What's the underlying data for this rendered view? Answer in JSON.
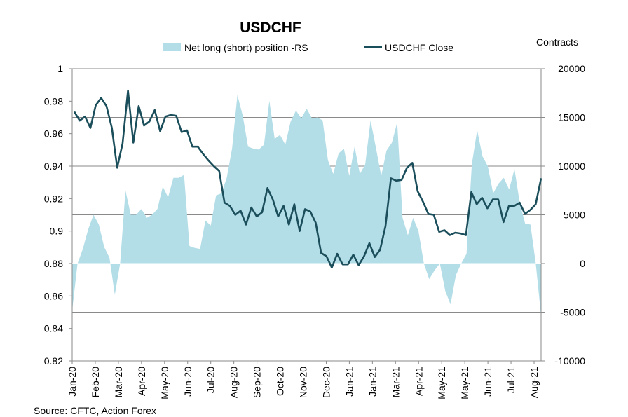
{
  "chart_data": {
    "type": "area+line",
    "title": "USDCHF",
    "source": "Source: CFTC, Action Forex",
    "right_axis_title": "Contracts",
    "legend": [
      {
        "name": "Net long (short) position -RS",
        "kind": "area",
        "color": "#b3dde7"
      },
      {
        "name": "USDCHF Close",
        "kind": "line",
        "color": "#1b4e5b"
      }
    ],
    "y_left": {
      "min": 0.82,
      "max": 1.0,
      "step": 0.02,
      "ticks": [
        "0.82",
        "0.84",
        "0.86",
        "0.88",
        "0.9",
        "0.92",
        "0.94",
        "0.96",
        "0.98",
        "1"
      ]
    },
    "y_right": {
      "min": -10000,
      "max": 20000,
      "step": 5000,
      "ticks": [
        "-10000",
        "-5000",
        "0",
        "5000",
        "10000",
        "15000",
        "20000"
      ]
    },
    "x_labels": [
      "Jan-20",
      "Feb-20",
      "Mar-20",
      "Apr-20",
      "May-20",
      "Jun-20",
      "Jul-20",
      "Aug-20",
      "Sep-20",
      "Oct-20",
      "Nov-20",
      "Dec-20",
      "Jan-21",
      "Jan-21",
      "Mar-21",
      "Apr-21",
      "May-21",
      "May-21",
      "Jun-21",
      "Jul-21",
      "Aug-21"
    ],
    "series": [
      {
        "name": "Net long (short) position -RS",
        "axis": "right",
        "values": [
          -4800,
          0,
          1500,
          3500,
          5000,
          4000,
          1700,
          600,
          -3200,
          0,
          7500,
          5000,
          5000,
          5600,
          4700,
          5000,
          5600,
          7900,
          6800,
          8800,
          8800,
          9100,
          1800,
          1600,
          1500,
          4400,
          3900,
          7000,
          7200,
          8800,
          11800,
          17300,
          15200,
          12000,
          11800,
          11700,
          12200,
          16700,
          12800,
          13200,
          12200,
          14600,
          15700,
          14900,
          15900,
          14900,
          15000,
          14700,
          10600,
          9200,
          11300,
          11800,
          9000,
          12000,
          9200,
          10200,
          14700,
          11900,
          9000,
          11600,
          12400,
          14500,
          4700,
          2900,
          4700,
          3300,
          0,
          -1600,
          -700,
          0,
          -2800,
          -4200,
          -1200,
          0,
          1000,
          10200,
          13700,
          11000,
          10000,
          7200,
          8200,
          8800,
          7600,
          9700,
          6200,
          4100,
          4000,
          0,
          -5400
        ]
      },
      {
        "name": "USDCHF Close",
        "axis": "left",
        "values": [
          0.9735,
          0.968,
          0.9705,
          0.9635,
          0.9775,
          0.982,
          0.977,
          0.9635,
          0.939,
          0.954,
          0.9865,
          0.9545,
          0.977,
          0.965,
          0.9675,
          0.9745,
          0.9615,
          0.9705,
          0.9715,
          0.971,
          0.961,
          0.962,
          0.952,
          0.952,
          0.9475,
          0.9435,
          0.94,
          0.937,
          0.9175,
          0.9155,
          0.91,
          0.9125,
          0.904,
          0.9145,
          0.909,
          0.9115,
          0.9265,
          0.9195,
          0.909,
          0.9155,
          0.904,
          0.9165,
          0.9,
          0.9135,
          0.912,
          0.905,
          0.8865,
          0.8845,
          0.8775,
          0.886,
          0.8795,
          0.8795,
          0.8855,
          0.879,
          0.8845,
          0.8925,
          0.884,
          0.8885,
          0.903,
          0.9325,
          0.931,
          0.9315,
          0.939,
          0.942,
          0.9245,
          0.918,
          0.9105,
          0.91,
          0.8995,
          0.9005,
          0.8975,
          0.899,
          0.8985,
          0.8975,
          0.924,
          0.9165,
          0.9205,
          0.914,
          0.9195,
          0.9195,
          0.9055,
          0.9155,
          0.9155,
          0.9175,
          0.9105,
          0.913,
          0.9165,
          0.9325
        ]
      }
    ]
  }
}
